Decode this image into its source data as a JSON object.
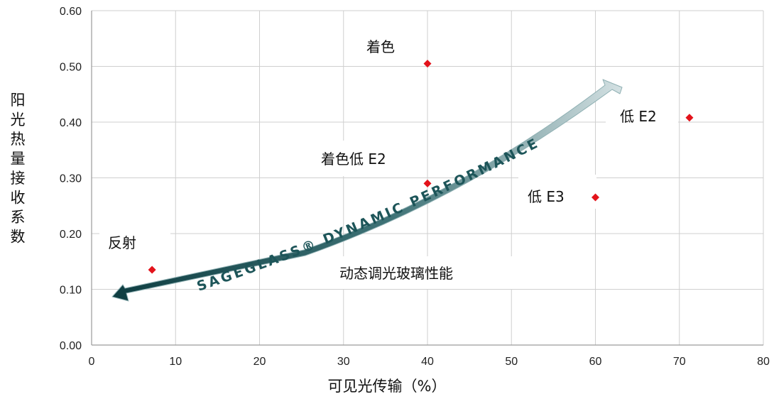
{
  "chart_data": {
    "type": "scatter",
    "title": "",
    "xlabel": "可见光传输（%）",
    "ylabel": "阳光热量接收系数",
    "xlim": [
      0,
      80
    ],
    "ylim": [
      0,
      0.6
    ],
    "x_ticks": [
      "0",
      "10",
      "20",
      "30",
      "40",
      "50",
      "60",
      "70",
      "80"
    ],
    "y_ticks": [
      "0.00",
      "0.10",
      "0.20",
      "0.30",
      "0.40",
      "0.50",
      "0.60"
    ],
    "grid": true,
    "marker_color": "#e3131b",
    "points": [
      {
        "label": "反射",
        "x": 7.2,
        "y": 0.135
      },
      {
        "label": "着色",
        "x": 40.0,
        "y": 0.505
      },
      {
        "label": "着色低 E2",
        "x": 40.0,
        "y": 0.29
      },
      {
        "label": "低 E2",
        "x": 71.2,
        "y": 0.408
      },
      {
        "label": "低 E3",
        "x": 60.0,
        "y": 0.265
      }
    ],
    "annotations": {
      "arrow_text": "SAGEGLASS® DYNAMIC PERFORMANCE",
      "caption": "动态调光玻璃性能"
    }
  }
}
